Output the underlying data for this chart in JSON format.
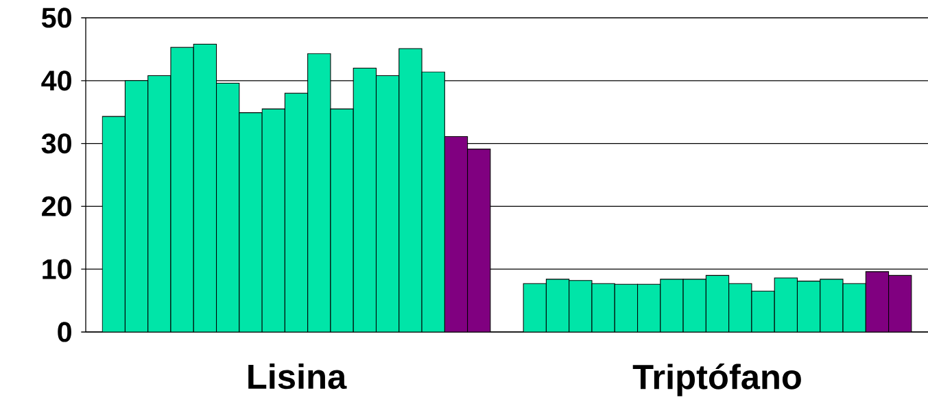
{
  "chart_data": {
    "type": "bar",
    "categories": [
      "Lisina",
      "Triptófano"
    ],
    "series": [
      {
        "color": "#00e5a8",
        "values": [
          34.3,
          7.7
        ]
      },
      {
        "color": "#00e5a8",
        "values": [
          40.0,
          8.4
        ]
      },
      {
        "color": "#00e5a8",
        "values": [
          40.8,
          8.2
        ]
      },
      {
        "color": "#00e5a8",
        "values": [
          45.3,
          7.7
        ]
      },
      {
        "color": "#00e5a8",
        "values": [
          45.8,
          7.6
        ]
      },
      {
        "color": "#00e5a8",
        "values": [
          39.6,
          7.6
        ]
      },
      {
        "color": "#00e5a8",
        "values": [
          34.9,
          8.4
        ]
      },
      {
        "color": "#00e5a8",
        "values": [
          35.5,
          8.4
        ]
      },
      {
        "color": "#00e5a8",
        "values": [
          38.0,
          9.0
        ]
      },
      {
        "color": "#00e5a8",
        "values": [
          44.3,
          7.7
        ]
      },
      {
        "color": "#00e5a8",
        "values": [
          35.5,
          6.5
        ]
      },
      {
        "color": "#00e5a8",
        "values": [
          42.0,
          8.6
        ]
      },
      {
        "color": "#00e5a8",
        "values": [
          40.8,
          8.1
        ]
      },
      {
        "color": "#00e5a8",
        "values": [
          45.1,
          8.4
        ]
      },
      {
        "color": "#00e5a8",
        "values": [
          41.4,
          7.7
        ]
      },
      {
        "color": "#800080",
        "values": [
          31.1,
          9.6
        ]
      },
      {
        "color": "#800080",
        "values": [
          29.1,
          9.0
        ]
      }
    ],
    "ylim": [
      0,
      50
    ],
    "yticks": [
      0,
      10,
      20,
      30,
      40,
      50
    ],
    "grid": "y"
  }
}
